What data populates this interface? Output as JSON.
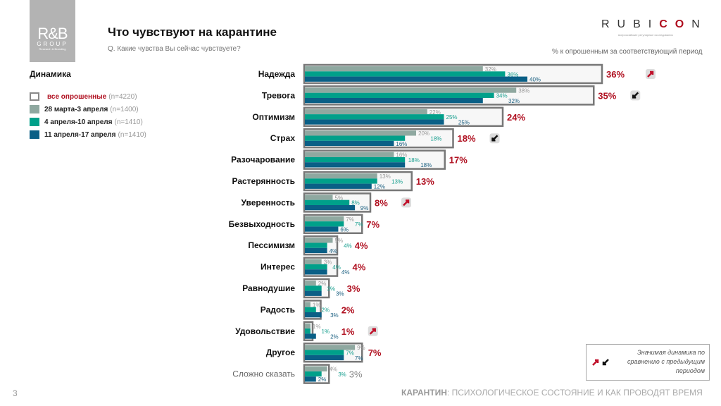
{
  "logo": {
    "text": "R&B",
    "group": "GROUP",
    "sub": "Research & Branding"
  },
  "title": "Что чувствуют на карантине",
  "question": "Q. Какие чувства Вы сейчас чувствуете?",
  "brand": {
    "pre": "RUBI",
    "accent": "CO",
    "post": "N",
    "sub": "всероссийские регулярные исследования"
  },
  "unit_note": "% к опрошенным за соответствующий период",
  "legend_title": "Динамика",
  "legend": [
    {
      "label": "все опрошенные",
      "n": "(n=4220)",
      "color": "#ffffff"
    },
    {
      "label": "28 марта-3 апреля",
      "n": "(n=1400)",
      "color": "#8fa8a0"
    },
    {
      "label": "4 апреля-10 апреля",
      "n": "(n=1410)",
      "color": "#00a08a"
    },
    {
      "label": "11 апреля-17 апреля",
      "n": "(n=1410)",
      "color": "#0a5f86"
    }
  ],
  "note": "Значимая динамика по сравнению с предыдущим периодом",
  "footer": {
    "bold": "КАРАНТИН",
    "rest": ": ПСИХОЛОГИЧЕСКОЕ СОСТОЯНИЕ И КАК ПРОВОДЯТ ВРЕМЯ"
  },
  "page_number": "3",
  "colors": {
    "total_label": "#b01020",
    "up_arrow": "#c0102a",
    "down_arrow": "#111111",
    "box_border": "#777777"
  },
  "chart_data": {
    "type": "bar",
    "orientation": "horizontal",
    "categories": [
      "Надежда",
      "Тревога",
      "Оптимизм",
      "Страх",
      "Разочарование",
      "Растерянность",
      "Уверенность",
      "Безвыходность",
      "Пессимизм",
      "Интерес",
      "Равнодушие",
      "Радость",
      "Удовольствие",
      "Другое",
      "Сложно сказать"
    ],
    "series": [
      {
        "name": "все опрошенные",
        "values": [
          36,
          35,
          24,
          18,
          17,
          13,
          8,
          7,
          4,
          4,
          3,
          2,
          1,
          7,
          3
        ]
      },
      {
        "name": "28 марта-3 апреля",
        "values": [
          32,
          38,
          22,
          20,
          16,
          13,
          5,
          7,
          5,
          3,
          2,
          1,
          1,
          9,
          4
        ]
      },
      {
        "name": "4 апреля-10 апреля",
        "values": [
          36,
          34,
          25,
          18,
          18,
          13,
          8,
          7,
          4,
          4,
          3,
          2,
          1,
          7,
          3
        ]
      },
      {
        "name": "11 апреля-17 апреля",
        "values": [
          40,
          32,
          25,
          16,
          18,
          12,
          9,
          6,
          4,
          4,
          3,
          3,
          2,
          7,
          2
        ]
      }
    ],
    "significant_change": [
      "up",
      "down",
      "",
      "down",
      "",
      "",
      "up",
      "",
      "",
      "",
      "",
      "",
      "up",
      "",
      ""
    ],
    "unit": "%"
  }
}
